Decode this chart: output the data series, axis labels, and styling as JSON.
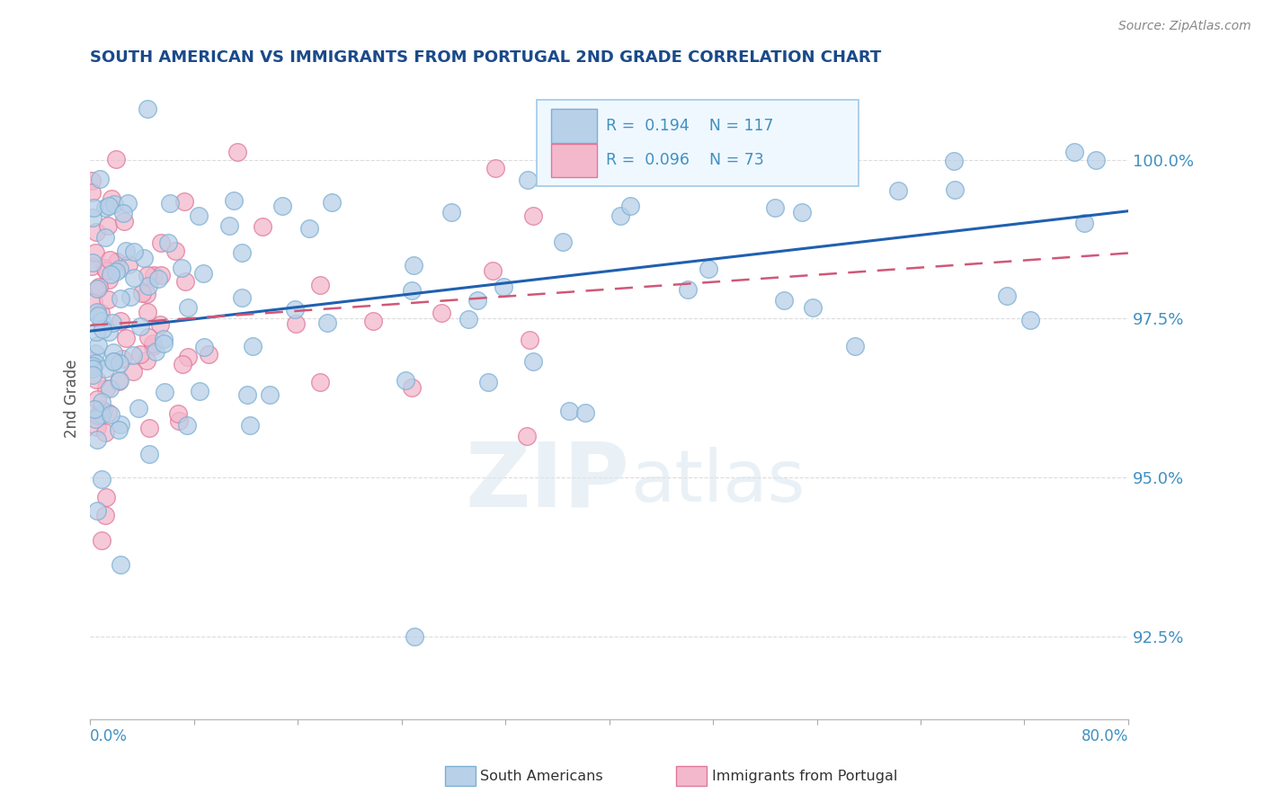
{
  "title": "SOUTH AMERICAN VS IMMIGRANTS FROM PORTUGAL 2ND GRADE CORRELATION CHART",
  "source": "Source: ZipAtlas.com",
  "ylabel": "2nd Grade",
  "xlim": [
    0.0,
    80.0
  ],
  "ylim": [
    91.2,
    101.3
  ],
  "yticks": [
    92.5,
    95.0,
    97.5,
    100.0
  ],
  "ytick_labels": [
    "92.5%",
    "95.0%",
    "97.5%",
    "100.0%"
  ],
  "blue_R": 0.194,
  "blue_N": 117,
  "pink_R": 0.096,
  "pink_N": 73,
  "blue_color": "#b8d0e8",
  "blue_edge": "#7bafd4",
  "pink_color": "#f4b8cc",
  "pink_edge": "#e07898",
  "blue_line_color": "#2060b0",
  "pink_line_color": "#d05878",
  "watermark": "ZIPatlas",
  "background_color": "#ffffff",
  "grid_color": "#cccccc",
  "title_color": "#1a4a8a",
  "axis_color": "#4090c0",
  "blue_seed": 42,
  "pink_seed": 7,
  "legend_box_color": "#d8eaf8",
  "legend_border_color": "#a0c8e8"
}
